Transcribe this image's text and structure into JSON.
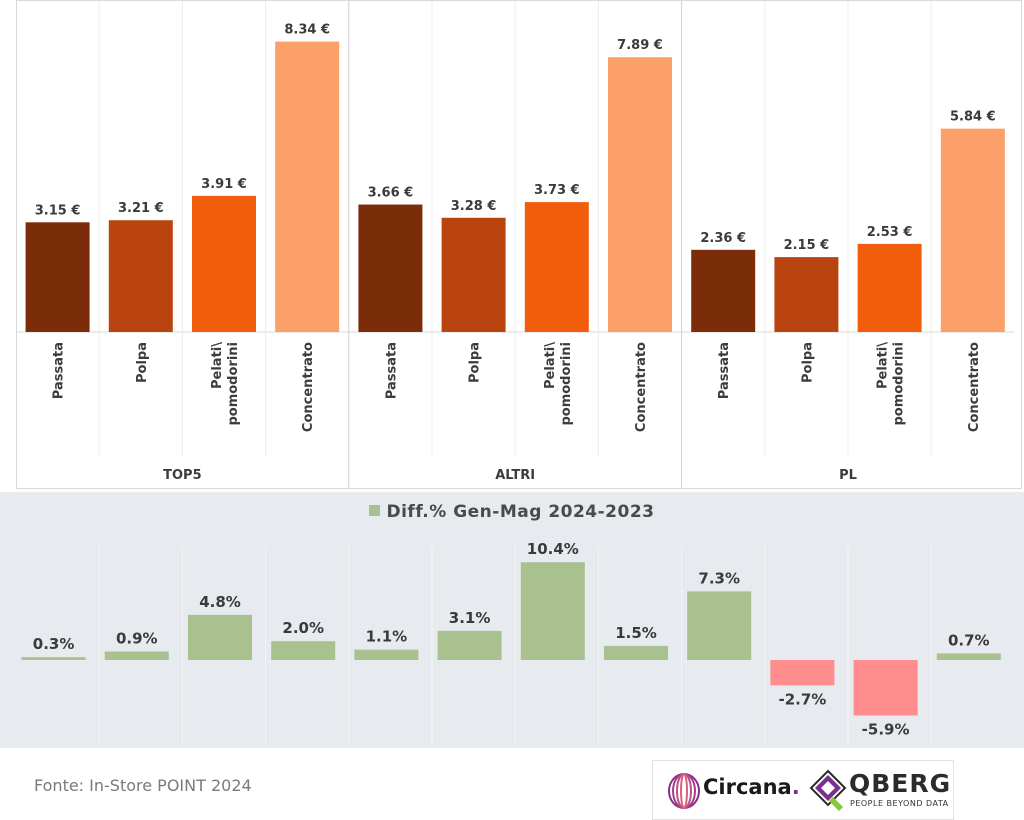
{
  "chart_data": [
    {
      "type": "bar",
      "groups": [
        "TOP5",
        "ALTRI",
        "PL"
      ],
      "categories": [
        "Passata",
        "Polpa",
        "Pelati\\ pomodorini",
        "Concentrato"
      ],
      "category_lines": [
        [
          "Passata"
        ],
        [
          "Polpa"
        ],
        [
          "Pelati\\",
          "pomodorini"
        ],
        [
          "Concentrato"
        ]
      ],
      "series": [
        {
          "group": "TOP5",
          "values": [
            3.15,
            3.21,
            3.91,
            8.34
          ],
          "labels": [
            "3.15 €",
            "3.21 €",
            "3.91 €",
            "8.34 €"
          ]
        },
        {
          "group": "ALTRI",
          "values": [
            3.66,
            3.28,
            3.73,
            7.89
          ],
          "labels": [
            "3.66 €",
            "3.28 €",
            "3.73 €",
            "7.89 €"
          ]
        },
        {
          "group": "PL",
          "values": [
            2.36,
            2.15,
            2.53,
            5.84
          ],
          "labels": [
            "2.36 €",
            "2.15 €",
            "2.53 €",
            "5.84 €"
          ]
        }
      ],
      "category_colors": [
        "#7b2d0a",
        "#b9440f",
        "#f25d0c",
        "#fca06a"
      ],
      "ylim": [
        0,
        8.5
      ],
      "grid": "vertical separators only",
      "axis_color": "#d9d9d9"
    },
    {
      "type": "bar",
      "legend": "Diff.% Gen-Mag 2024-2023",
      "legend_position": "top-center",
      "values": [
        0.3,
        0.9,
        4.8,
        2.0,
        1.1,
        3.1,
        10.4,
        1.5,
        7.3,
        -2.7,
        -5.9,
        0.7
      ],
      "labels": [
        "0.3%",
        "0.9%",
        "4.8%",
        "2.0%",
        "1.1%",
        "3.1%",
        "10.4%",
        "1.5%",
        "7.3%",
        "-2.7%",
        "-5.9%",
        "0.7%"
      ],
      "positive_color": "#a9c08f",
      "negative_color": "#ff8d8d",
      "ylim": [
        -6.5,
        11
      ],
      "background": "#e7eaee"
    }
  ],
  "footer": {
    "source": "Fonte: In-Store POINT 2024",
    "logo_circana": "Circana",
    "logo_circana_dot": ".",
    "logo_qberg": "QBERG",
    "logo_qberg_tagline": "PEOPLE BEYOND DATA"
  }
}
